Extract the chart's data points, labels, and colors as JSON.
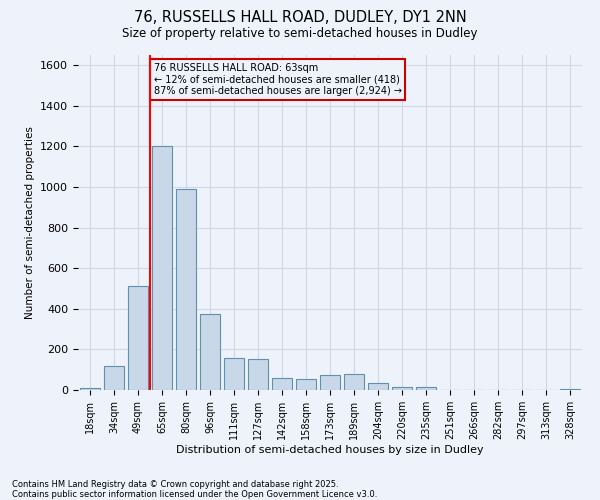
{
  "title_line1": "76, RUSSELLS HALL ROAD, DUDLEY, DY1 2NN",
  "title_line2": "Size of property relative to semi-detached houses in Dudley",
  "xlabel": "Distribution of semi-detached houses by size in Dudley",
  "ylabel": "Number of semi-detached properties",
  "categories": [
    "18sqm",
    "34sqm",
    "49sqm",
    "65sqm",
    "80sqm",
    "96sqm",
    "111sqm",
    "127sqm",
    "142sqm",
    "158sqm",
    "173sqm",
    "189sqm",
    "204sqm",
    "220sqm",
    "235sqm",
    "251sqm",
    "266sqm",
    "282sqm",
    "297sqm",
    "313sqm",
    "328sqm"
  ],
  "bar_values": [
    10,
    120,
    510,
    1200,
    990,
    375,
    160,
    155,
    60,
    55,
    75,
    80,
    35,
    15,
    15,
    0,
    0,
    0,
    0,
    0,
    5
  ],
  "bar_color": "#c8d8e8",
  "bar_edge_color": "#6090b0",
  "grid_color": "#d0d8e8",
  "background_color": "#eef2fa",
  "annotation_box_color": "#cc0000",
  "property_label": "76 RUSSELLS HALL ROAD: 63sqm",
  "pct_smaller": "12%",
  "pct_larger": "87%",
  "n_smaller": 418,
  "n_larger": 2924,
  "vline_bin_index": 3,
  "ylim": [
    0,
    1650
  ],
  "yticks": [
    0,
    200,
    400,
    600,
    800,
    1000,
    1200,
    1400,
    1600
  ],
  "footnote1": "Contains HM Land Registry data © Crown copyright and database right 2025.",
  "footnote2": "Contains public sector information licensed under the Open Government Licence v3.0."
}
